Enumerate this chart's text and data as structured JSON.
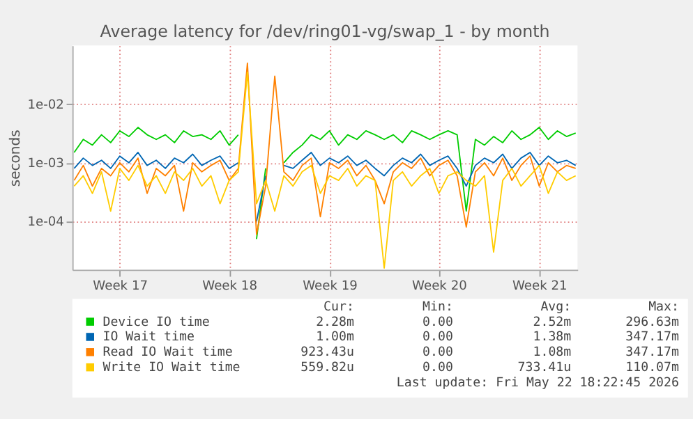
{
  "chart_data": {
    "type": "line",
    "title": "Average latency for /dev/ring01-vg/swap_1 - by month",
    "ylabel": "seconds",
    "log": "y",
    "grid": true,
    "legend": "bottom",
    "line_style": "solid",
    "marker": "none",
    "categories": [
      null,
      null,
      null,
      null,
      null,
      "Week 17",
      null,
      null,
      null,
      null,
      null,
      null,
      null,
      null,
      null,
      null,
      null,
      "Week 18",
      null,
      null,
      null,
      null,
      null,
      null,
      null,
      null,
      null,
      null,
      "Week 19",
      null,
      null,
      null,
      null,
      null,
      null,
      null,
      null,
      null,
      null,
      null,
      "Week 20",
      null,
      null,
      null,
      null,
      null,
      null,
      null,
      null,
      null,
      null,
      "Week 21",
      null,
      null,
      null,
      null
    ],
    "ylim": [
      1.5e-05,
      0.1
    ],
    "yticks": [
      {
        "value": 0.0001,
        "label": "1e-04"
      },
      {
        "value": 0.001,
        "label": "1e-03"
      },
      {
        "value": 0.01,
        "label": "1e-02"
      }
    ],
    "series": [
      {
        "name": "Device IO time",
        "color": "#00cc00",
        "values": [
          0.0015,
          0.0025,
          0.002,
          0.003,
          0.0022,
          0.0035,
          0.0028,
          0.004,
          0.003,
          0.0025,
          0.003,
          0.0022,
          0.0035,
          0.0028,
          0.003,
          0.0025,
          0.0035,
          0.002,
          0.003,
          null,
          5e-05,
          0.0008,
          null,
          0.001,
          0.0015,
          0.002,
          0.003,
          0.0025,
          0.0035,
          0.002,
          0.003,
          0.0025,
          0.0035,
          0.003,
          0.0025,
          0.003,
          0.0022,
          0.0035,
          0.003,
          0.0025,
          0.003,
          0.0035,
          0.003,
          0.00015,
          0.0025,
          0.002,
          0.0028,
          0.0022,
          0.0035,
          0.0025,
          0.003,
          0.004,
          0.0025,
          0.0035,
          0.0028,
          0.0032
        ]
      },
      {
        "name": "IO Wait time",
        "color": "#0066b3",
        "values": [
          0.0008,
          0.0012,
          0.0009,
          0.0011,
          0.0008,
          0.0013,
          0.001,
          0.0015,
          0.0009,
          0.0011,
          0.0008,
          0.0012,
          0.001,
          0.0014,
          0.0009,
          0.0011,
          0.0013,
          0.0008,
          0.001,
          null,
          0.0001,
          0.0006,
          null,
          0.0009,
          0.0008,
          0.0011,
          0.0015,
          0.0009,
          0.0012,
          0.001,
          0.0013,
          0.0009,
          0.0011,
          0.0008,
          0.0006,
          0.0009,
          0.0012,
          0.001,
          0.0014,
          0.0009,
          0.0011,
          0.0013,
          0.0008,
          0.0004,
          0.0009,
          0.0012,
          0.001,
          0.0014,
          0.0008,
          0.0012,
          0.0015,
          0.0009,
          0.0013,
          0.001,
          0.0011,
          0.0009
        ]
      },
      {
        "name": "Read IO Wait time",
        "color": "#ff8000",
        "values": [
          0.0005,
          0.0009,
          0.0004,
          0.0008,
          0.0006,
          0.001,
          0.0007,
          0.0012,
          0.0003,
          0.0008,
          0.0006,
          0.0009,
          0.00015,
          0.001,
          0.0007,
          0.0009,
          0.0011,
          0.0005,
          0.0008,
          0.05,
          6e-05,
          0.0004,
          0.03,
          0.0007,
          0.0005,
          0.0009,
          0.0012,
          0.00012,
          0.001,
          0.0008,
          0.0011,
          0.0006,
          0.0009,
          0.0005,
          0.0002,
          0.0007,
          0.001,
          0.0008,
          0.0012,
          0.0006,
          0.0009,
          0.0011,
          0.0006,
          8e-05,
          0.0007,
          0.001,
          0.0006,
          0.0012,
          0.0005,
          0.0009,
          0.0013,
          0.0004,
          0.001,
          0.0007,
          0.0009,
          0.0008
        ]
      },
      {
        "name": "Write IO Wait time",
        "color": "#ffcc00",
        "values": [
          0.0004,
          0.0006,
          0.0003,
          0.0007,
          0.00015,
          0.0008,
          0.0005,
          0.0009,
          0.0004,
          0.0006,
          0.0003,
          0.0007,
          0.0005,
          0.0008,
          0.0004,
          0.0006,
          0.0002,
          0.0005,
          0.0007,
          0.035,
          0.0002,
          0.0005,
          0.00015,
          0.0006,
          0.0004,
          0.0007,
          0.0009,
          0.0003,
          0.0006,
          0.0005,
          0.0008,
          0.0004,
          0.0006,
          0.0005,
          1.6e-05,
          0.0005,
          0.0007,
          0.0004,
          0.0006,
          0.0008,
          0.0003,
          0.0006,
          0.0007,
          0.0005,
          0.0004,
          0.0006,
          3e-05,
          0.0005,
          0.0008,
          0.0004,
          0.0006,
          0.0009,
          0.0003,
          0.0007,
          0.0005,
          0.0006
        ]
      }
    ],
    "annotations": [
      "Cur:",
      "Min:",
      "Avg:",
      "Max:",
      "2.28m",
      "0.00",
      "2.52m",
      "296.63m",
      "1.00m",
      "0.00",
      "1.38m",
      "347.17m",
      "923.43u",
      "0.00",
      "1.08m",
      "347.17m",
      "559.82u",
      "0.00",
      "733.41u",
      "110.07m",
      "Last update: Fri May 22 18:22:45 2026"
    ]
  }
}
